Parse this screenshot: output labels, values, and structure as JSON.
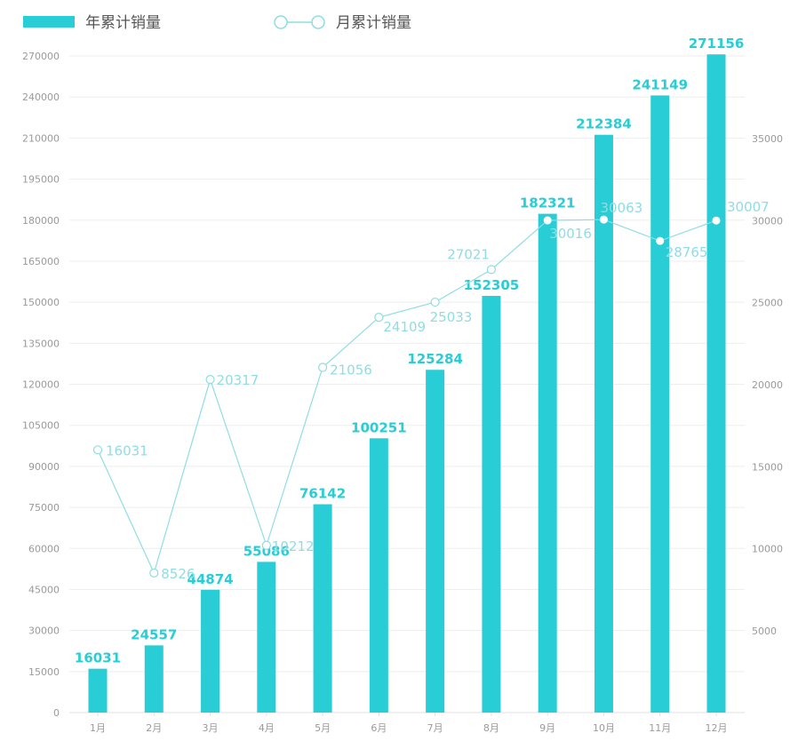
{
  "chart_data": {
    "type": "bar",
    "categories": [
      "1月",
      "2月",
      "3月",
      "4月",
      "5月",
      "6月",
      "7月",
      "8月",
      "9月",
      "10月",
      "11月",
      "12月"
    ],
    "series": [
      {
        "name": "年累计销量",
        "type": "bar",
        "axis": "left",
        "values": [
          16031,
          24557,
          44874,
          55086,
          76142,
          100251,
          125284,
          152305,
          182321,
          212384,
          241149,
          271156
        ],
        "color": "#29cdd5"
      },
      {
        "name": "月累计销量",
        "type": "line",
        "axis": "right",
        "values": [
          16031,
          8526,
          20317,
          10212,
          21056,
          24109,
          25033,
          27021,
          30016,
          30063,
          28765,
          30007
        ],
        "color": "#8fdde4"
      }
    ],
    "y_left": {
      "ticks": [
        0,
        15000,
        30000,
        45000,
        60000,
        75000,
        90000,
        105000,
        120000,
        135000,
        150000,
        165000,
        180000,
        195000,
        210000,
        240000,
        270000
      ]
    },
    "y_right": {
      "ticks": [
        5000,
        10000,
        15000,
        20000,
        25000,
        30000,
        35000
      ]
    },
    "legend": [
      {
        "label": "年累计销量",
        "kind": "bar"
      },
      {
        "label": "月累计销量",
        "kind": "line"
      }
    ],
    "legend_position": "top-left",
    "grid": true,
    "colors": {
      "bar": "#29cdd5",
      "line": "#8fdde4",
      "grid": "#eeeeee",
      "tick": "#9a9a9a",
      "legend_text": "#555555"
    }
  }
}
